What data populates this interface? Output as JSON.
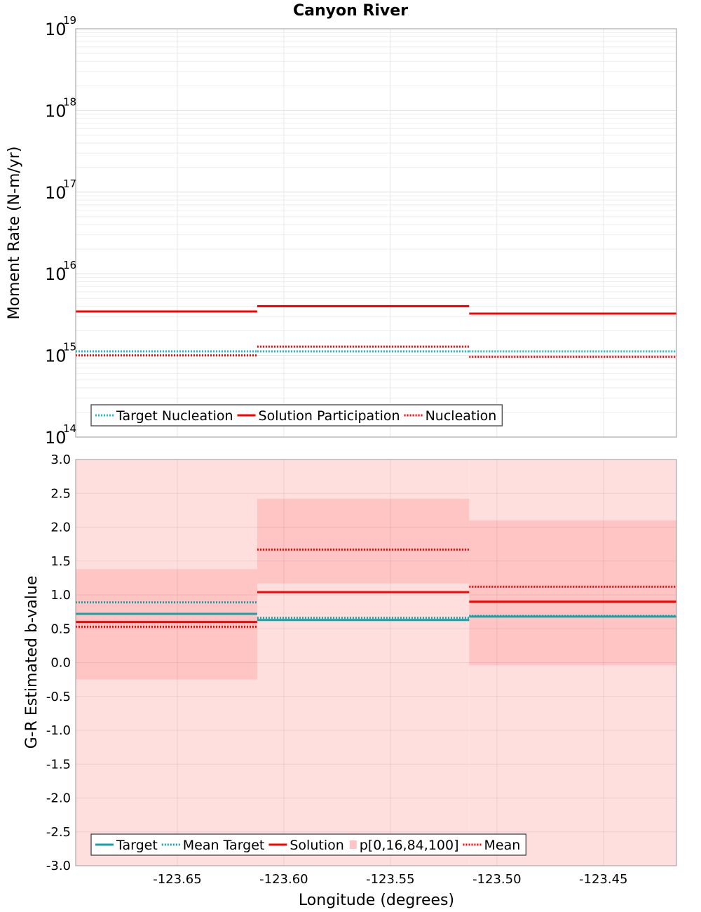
{
  "chart_data": [
    {
      "type": "line",
      "title": "Canyon River",
      "ylabel": "Moment Rate (N-m/yr)",
      "yscale": "log",
      "ylim": [
        100000000000000.0,
        1e+19
      ],
      "xlim": [
        -123.6977,
        -123.4157
      ],
      "y_tick_exponents": [
        14,
        15,
        16,
        17,
        18,
        19
      ],
      "grid": true,
      "legend_position": "bottom-left",
      "legend": [
        "Target Nucleation",
        "Solution Participation",
        "Nucleation"
      ],
      "bins": [
        {
          "x_start": -123.6977,
          "x_end": -123.6125
        },
        {
          "x_start": -123.6125,
          "x_end": -123.513
        },
        {
          "x_start": -123.513,
          "x_end": -123.4157
        }
      ],
      "series": [
        {
          "name": "Target Nucleation",
          "style": "dotted",
          "color": "#17becf",
          "values": [
            1120000000000000.0,
            1120000000000000.0,
            1120000000000000.0
          ]
        },
        {
          "name": "Solution Participation",
          "style": "solid",
          "color": "#ff0000",
          "values": [
            3450000000000000.0,
            4000000000000000.0,
            3250000000000000.0
          ]
        },
        {
          "name": "Nucleation",
          "style": "dotted",
          "color": "#ff0000",
          "values": [
            1000000000000000.0,
            1280000000000000.0,
            960000000000000.0
          ]
        }
      ]
    },
    {
      "type": "line",
      "xlabel": "Longitude (degrees)",
      "ylabel": "G-R Estimated b-value",
      "ylim": [
        -3.0,
        3.0
      ],
      "xlim": [
        -123.6977,
        -123.4157
      ],
      "x_ticks": [
        "-123.65",
        "-123.60",
        "-123.55",
        "-123.50",
        "-123.45"
      ],
      "y_ticks": [
        "3.0",
        "2.5",
        "2.0",
        "1.5",
        "1.0",
        "0.5",
        "0.0",
        "-0.5",
        "-1.0",
        "-1.5",
        "-2.0",
        "-2.5",
        "-3.0"
      ],
      "grid": true,
      "legend_position": "bottom-left",
      "legend": [
        "Target",
        "Mean Target",
        "Solution",
        "p[0,16,84,100]",
        "Mean"
      ],
      "bins": [
        {
          "x_start": -123.6977,
          "x_end": -123.6125
        },
        {
          "x_start": -123.6125,
          "x_end": -123.513
        },
        {
          "x_start": -123.513,
          "x_end": -123.4157
        }
      ],
      "bands": {
        "p0_p100": [
          [
            -3.0,
            3.0
          ],
          [
            -3.0,
            3.0
          ],
          [
            -3.0,
            3.0
          ]
        ],
        "p16_p84": [
          [
            -0.25,
            1.38
          ],
          [
            1.17,
            2.42
          ],
          [
            -0.04,
            2.1
          ]
        ]
      },
      "series": [
        {
          "name": "Target",
          "style": "solid",
          "color": "#17a2a8",
          "values": [
            0.72,
            0.63,
            0.68
          ]
        },
        {
          "name": "Mean Target",
          "style": "dotted",
          "color": "#17a2a8",
          "values": [
            0.89,
            0.66,
            0.69
          ]
        },
        {
          "name": "Solution",
          "style": "solid",
          "color": "#ff0000",
          "values": [
            0.6,
            1.04,
            0.9
          ]
        },
        {
          "name": "Mean",
          "style": "dotted",
          "color": "#ff0000",
          "values": [
            0.53,
            1.67,
            1.12
          ]
        }
      ],
      "colors": {
        "outer_band": "#ffdede",
        "inner_band": "#ffc4c4"
      }
    }
  ]
}
